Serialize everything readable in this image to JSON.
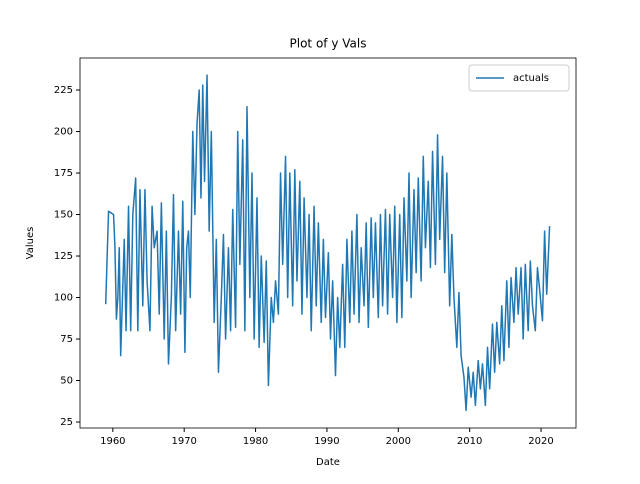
{
  "chart_data": {
    "type": "line",
    "title": "Plot of y Vals",
    "x_label": "Date",
    "y_label": "Values",
    "x": [
      1959,
      1959.4,
      1960.1,
      1960.3,
      1960.5,
      1960.7,
      1960.9,
      1961.1,
      1961.35,
      1961.6,
      1961.85,
      1962.2,
      1962.5,
      1962.8,
      1963.2,
      1963.5,
      1963.8,
      1964.2,
      1964.5,
      1964.8,
      1965.2,
      1965.5,
      1965.8,
      1966.2,
      1966.5,
      1966.8,
      1967.2,
      1967.5,
      1967.8,
      1968.2,
      1968.5,
      1968.8,
      1969.2,
      1969.5,
      1969.8,
      1970.1,
      1970.35,
      1970.6,
      1970.85,
      1971.2,
      1971.5,
      1971.8,
      1972.1,
      1972.35,
      1972.6,
      1972.85,
      1973.2,
      1973.5,
      1973.8,
      1974.2,
      1974.5,
      1974.8,
      1975.2,
      1975.5,
      1975.8,
      1976.2,
      1976.5,
      1976.8,
      1977.2,
      1977.5,
      1977.8,
      1978.2,
      1978.5,
      1978.8,
      1979.2,
      1979.5,
      1979.8,
      1980.2,
      1980.5,
      1980.8,
      1981.2,
      1981.5,
      1981.8,
      1982.2,
      1982.5,
      1982.8,
      1983.2,
      1983.5,
      1983.8,
      1984.2,
      1984.5,
      1984.8,
      1985.2,
      1985.5,
      1985.8,
      1986.2,
      1986.5,
      1986.8,
      1987.2,
      1987.5,
      1987.8,
      1988.2,
      1988.5,
      1988.8,
      1989.2,
      1989.5,
      1989.8,
      1990.2,
      1990.5,
      1990.8,
      1991.2,
      1991.5,
      1991.8,
      1992.2,
      1992.5,
      1992.8,
      1993.2,
      1993.5,
      1993.8,
      1994.2,
      1994.5,
      1994.8,
      1995.2,
      1995.5,
      1995.8,
      1996.2,
      1996.5,
      1996.8,
      1997.2,
      1997.5,
      1997.8,
      1998.2,
      1998.5,
      1998.8,
      1999.2,
      1999.5,
      1999.8,
      2000.2,
      2000.5,
      2000.8,
      2001.2,
      2001.5,
      2001.8,
      2002.2,
      2002.5,
      2002.8,
      2003.2,
      2003.5,
      2003.8,
      2004.2,
      2004.5,
      2004.8,
      2005.2,
      2005.5,
      2005.8,
      2006.2,
      2006.5,
      2006.8,
      2007.2,
      2007.5,
      2007.8,
      2008.2,
      2008.5,
      2008.8,
      2009.2,
      2009.5,
      2009.8,
      2010.2,
      2010.5,
      2010.8,
      2011.2,
      2011.5,
      2011.8,
      2012.2,
      2012.5,
      2012.8,
      2013.2,
      2013.5,
      2013.8,
      2014.2,
      2014.5,
      2014.8,
      2015.2,
      2015.5,
      2015.8,
      2016.2,
      2016.5,
      2016.8,
      2017.2,
      2017.5,
      2017.8,
      2018.2,
      2018.5,
      2018.8,
      2019.2,
      2019.5,
      2019.8,
      2020.2,
      2020.5,
      2020.8,
      2021.2
    ],
    "series": [
      {
        "name": "actuals",
        "color": "#1f77b4",
        "values": [
          96,
          152,
          150,
          130,
          87,
          100,
          130,
          65,
          100,
          135,
          80,
          155,
          80,
          150,
          172,
          80,
          165,
          95,
          165,
          110,
          80,
          155,
          130,
          140,
          90,
          157,
          75,
          140,
          60,
          100,
          162,
          80,
          140,
          90,
          158,
          67,
          130,
          140,
          100,
          200,
          150,
          205,
          225,
          160,
          228,
          170,
          234,
          140,
          200,
          85,
          135,
          55,
          100,
          138,
          75,
          130,
          80,
          153,
          82,
          200,
          120,
          195,
          80,
          215,
          100,
          175,
          75,
          160,
          70,
          125,
          73,
          122,
          47,
          100,
          85,
          110,
          90,
          175,
          120,
          185,
          100,
          175,
          95,
          177,
          110,
          170,
          90,
          160,
          100,
          150,
          80,
          155,
          95,
          145,
          85,
          135,
          88,
          127,
          75,
          110,
          53,
          100,
          70,
          120,
          70,
          135,
          85,
          140,
          90,
          150,
          85,
          130,
          95,
          145,
          82,
          148,
          100,
          145,
          88,
          150,
          95,
          153,
          90,
          150,
          100,
          155,
          85,
          150,
          88,
          160,
          110,
          175,
          100,
          165,
          115,
          172,
          110,
          185,
          130,
          170,
          118,
          188,
          120,
          198,
          135,
          185,
          115,
          175,
          95,
          138,
          100,
          70,
          103,
          65,
          52,
          32,
          58,
          40,
          55,
          35,
          62,
          45,
          60,
          35,
          70,
          45,
          84,
          55,
          85,
          60,
          95,
          62,
          110,
          70,
          112,
          85,
          118,
          90,
          118,
          75,
          120,
          80,
          122,
          95,
          80,
          118,
          105,
          86,
          140,
          102,
          143
        ]
      }
    ],
    "xlim": [
      1955.4,
      2024.9
    ],
    "xticks": [
      1960,
      1970,
      1980,
      1990,
      2000,
      2010,
      2020
    ],
    "ylim": [
      21.4,
      244.3
    ],
    "yticks": [
      25,
      50,
      75,
      100,
      125,
      150,
      175,
      200,
      225
    ],
    "legend": "upper right"
  }
}
